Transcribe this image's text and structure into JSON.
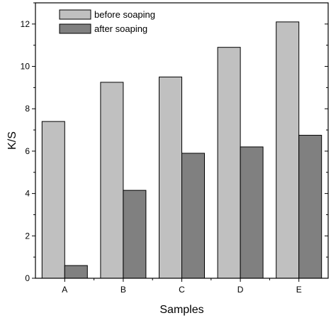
{
  "chart_data": {
    "type": "bar",
    "categories": [
      "A",
      "B",
      "C",
      "D",
      "E"
    ],
    "series": [
      {
        "name": "before soaping",
        "values": [
          7.4,
          9.25,
          9.5,
          10.9,
          12.1
        ],
        "color": "#c0c0c0"
      },
      {
        "name": "after soaping",
        "values": [
          0.6,
          4.15,
          5.9,
          6.2,
          6.75
        ],
        "color": "#808080"
      }
    ],
    "xlabel": "Samples",
    "ylabel": "K/S",
    "ylim": [
      0,
      13
    ],
    "yticks": [
      0,
      2,
      4,
      6,
      8,
      10,
      12
    ],
    "ytick_labels": [
      "0",
      "2",
      "4",
      "6",
      "8",
      "10",
      "12"
    ],
    "grid": false,
    "legend_position": "top-left"
  }
}
